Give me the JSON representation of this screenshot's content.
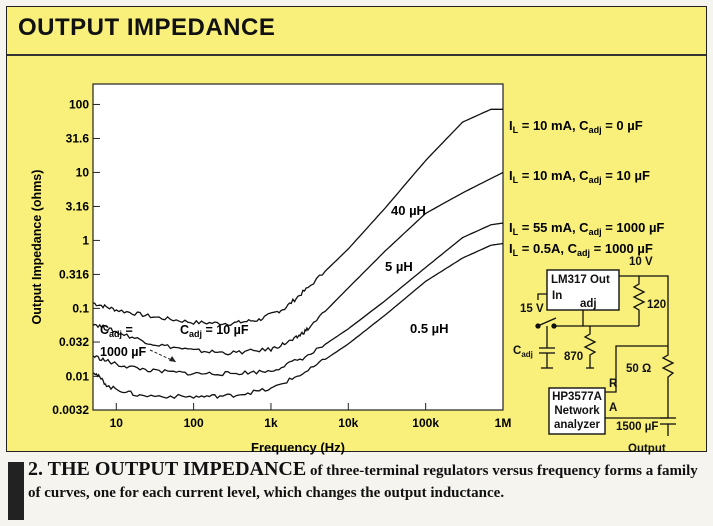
{
  "panel_title": "OUTPUT IMPEDANCE",
  "chart_data": {
    "type": "line",
    "xscale": "log",
    "yscale": "log",
    "xlim": [
      5,
      1000000
    ],
    "ylim": [
      0.0032,
      200
    ],
    "xlabel": "Frequency (Hz)",
    "ylabel": "Output Impedance (ohms)",
    "xticks": [
      {
        "v": 10,
        "label": "10"
      },
      {
        "v": 100,
        "label": "100"
      },
      {
        "v": 1000,
        "label": "1k"
      },
      {
        "v": 10000,
        "label": "10k"
      },
      {
        "v": 100000,
        "label": "100k"
      },
      {
        "v": 1000000,
        "label": "1M"
      }
    ],
    "yticks": [
      {
        "v": 100,
        "label": "100"
      },
      {
        "v": 31.6,
        "label": "31.6"
      },
      {
        "v": 10,
        "label": "10"
      },
      {
        "v": 3.16,
        "label": "3.16"
      },
      {
        "v": 1,
        "label": "1"
      },
      {
        "v": 0.316,
        "label": "0.316"
      },
      {
        "v": 0.1,
        "label": "0.1"
      },
      {
        "v": 0.032,
        "label": "0.032"
      },
      {
        "v": 0.01,
        "label": "0.01"
      },
      {
        "v": 0.0032,
        "label": "0.0032"
      }
    ],
    "series": [
      {
        "name": "IL = 10 mA, Cadj = 0 µF",
        "x": [
          5,
          10,
          30,
          100,
          300,
          700,
          1500,
          3000,
          10000,
          30000,
          100000,
          300000,
          700000,
          1000000
        ],
        "y": [
          0.12,
          0.095,
          0.075,
          0.062,
          0.06,
          0.068,
          0.1,
          0.2,
          0.75,
          3,
          15,
          55,
          85,
          85
        ]
      },
      {
        "name": "IL = 10 mA, Cadj = 10 µF",
        "x": [
          5,
          10,
          30,
          100,
          300,
          1000,
          2000,
          3000,
          10000,
          30000,
          100000,
          300000,
          1000000
        ],
        "y": [
          0.06,
          0.045,
          0.03,
          0.024,
          0.022,
          0.025,
          0.035,
          0.05,
          0.2,
          0.7,
          2.5,
          5,
          10
        ]
      },
      {
        "name": "IL = 55 mA, Cadj = 1000 µF",
        "x": [
          5,
          10,
          30,
          100,
          300,
          1000,
          3000,
          10000,
          30000,
          100000,
          300000,
          700000,
          1000000
        ],
        "y": [
          0.02,
          0.015,
          0.012,
          0.011,
          0.011,
          0.012,
          0.02,
          0.05,
          0.13,
          0.4,
          1.1,
          1.7,
          1.8
        ]
      },
      {
        "name": "IL = 0.5A, Cadj = 1000 µF",
        "x": [
          5,
          8,
          20,
          100,
          300,
          1000,
          3000,
          10000,
          30000,
          100000,
          300000,
          700000,
          1000000
        ],
        "y": [
          0.012,
          0.007,
          0.0052,
          0.005,
          0.0052,
          0.0065,
          0.012,
          0.03,
          0.08,
          0.25,
          0.55,
          0.85,
          0.9
        ]
      }
    ],
    "annotations": [
      "40 µH",
      "5 µH",
      "0.5 µH",
      "Cadj = 1000 µF",
      "Cadj = 10 µF"
    ]
  },
  "legend": [
    {
      "pre": "I",
      "sub1": "L",
      "mid": " = 10 mA, C",
      "sub2": "adj",
      "post": " = 0 µF"
    },
    {
      "pre": "I",
      "sub1": "L",
      "mid": " = 10 mA, C",
      "sub2": "adj",
      "post": " = 10 µF"
    },
    {
      "pre": "I",
      "sub1": "L",
      "mid": " = 55 mA, C",
      "sub2": "adj",
      "post": " = 1000 µF"
    },
    {
      "pre": "I",
      "sub1": "L",
      "mid": " = 0.5A, C",
      "sub2": "adj",
      "post": " = 1000 µF"
    }
  ],
  "inductance_labels": {
    "l40": "40 µH",
    "l5": "5 µH",
    "l05": "0.5 µH"
  },
  "cadj_labels": {
    "left_line1": "C",
    "left_sub": "adj",
    "left_eq": " =",
    "left_line2": "1000 µF",
    "right_pre": "C",
    "right_sub": "adj",
    "right_post": " = 10 µF"
  },
  "schematic": {
    "lm317": "LM317 Out",
    "in": "In",
    "adj": "adj",
    "v15": "15 V",
    "v10": "10 V",
    "r120": "120",
    "r870": "870",
    "cadj_pre": "C",
    "cadj_sub": "adj",
    "r50": "50 Ω",
    "r_port": "R",
    "a_port": "A",
    "analyzer1": "HP3577A",
    "analyzer2": "Network",
    "analyzer3": "analyzer",
    "c1500": "1500 µF",
    "output": "Output"
  },
  "caption": {
    "lead": "2. THE OUTPUT IMPEDANCE",
    "rest": " of three-terminal regulators versus frequency forms a family of curves, one for each current level, which changes the output inductance."
  }
}
